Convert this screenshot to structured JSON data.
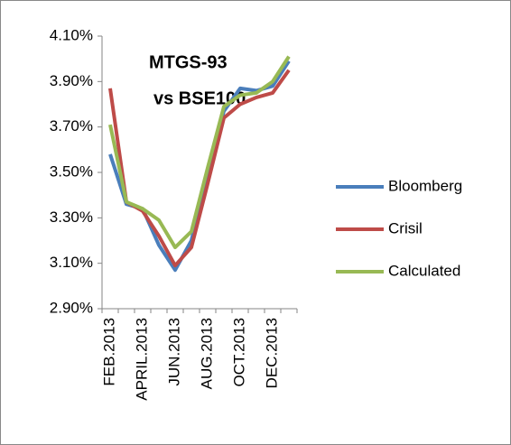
{
  "chart_data": {
    "type": "line",
    "title": [
      "MTGS-93",
      "vs BSE100"
    ],
    "categories": [
      "FEB.2013",
      null,
      "APRIL.2013",
      null,
      "JUN.2013",
      null,
      "AUG.2013",
      null,
      "OCT.2013",
      null,
      "DEC.2013",
      null
    ],
    "series": [
      {
        "name": "Bloomberg",
        "color": "#4a7ebb",
        "values": [
          3.58,
          3.36,
          3.34,
          3.18,
          3.07,
          3.2,
          3.5,
          3.77,
          3.87,
          3.86,
          3.88,
          3.99
        ]
      },
      {
        "name": "Crisil",
        "color": "#be4b48",
        "values": [
          3.87,
          3.37,
          3.33,
          3.22,
          3.09,
          3.17,
          3.45,
          3.74,
          3.8,
          3.83,
          3.85,
          3.95
        ]
      },
      {
        "name": "Calculated",
        "color": "#98b954",
        "values": [
          3.71,
          3.37,
          3.34,
          3.29,
          3.17,
          3.24,
          3.52,
          3.79,
          3.84,
          3.85,
          3.9,
          4.01
        ]
      }
    ],
    "ylim": [
      2.9,
      4.1
    ],
    "yticks": [
      {
        "value": 2.9,
        "label": "2.90%"
      },
      {
        "value": 3.1,
        "label": "3.10%"
      },
      {
        "value": 3.3,
        "label": "3.30%"
      },
      {
        "value": 3.5,
        "label": "3.50%"
      },
      {
        "value": 3.7,
        "label": "3.70%"
      },
      {
        "value": 3.9,
        "label": "3.90%"
      },
      {
        "value": 4.1,
        "label": "4.10%"
      }
    ],
    "legend": "right"
  }
}
